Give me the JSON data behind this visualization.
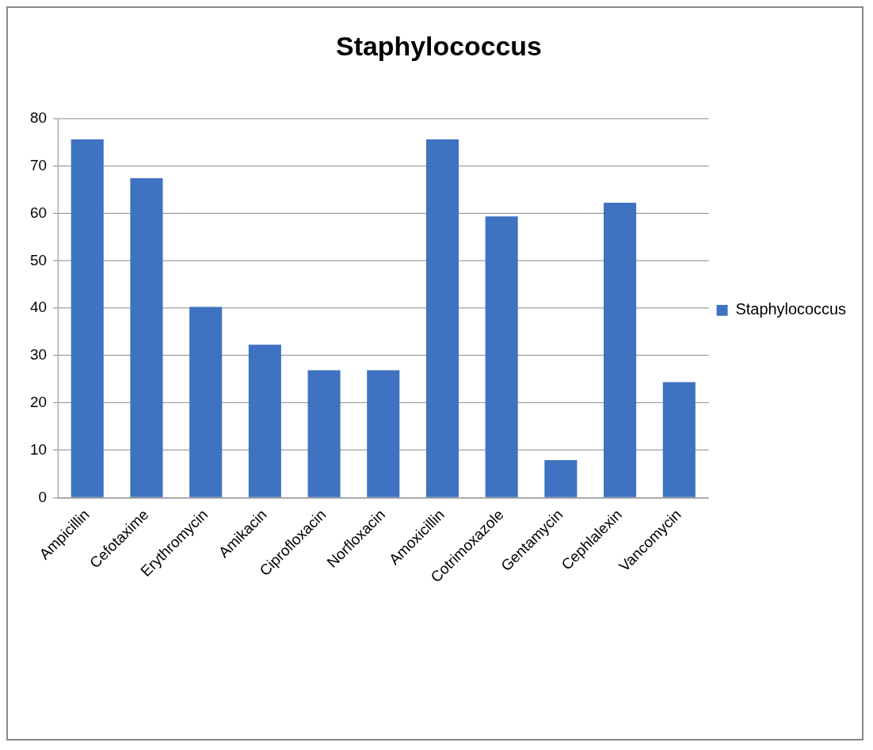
{
  "chart_data": {
    "type": "bar",
    "title": "Staphylococcus",
    "categories": [
      "Ampicillin",
      "Cefotaxime",
      "Erythromycin",
      "Amikacin",
      "Ciprofloxacin",
      "Norfloxacin",
      "Amoxicillin",
      "Cotrimoxazole",
      "Gentamycin",
      "Cephlalexin",
      "Vancomycin"
    ],
    "series": [
      {
        "name": "Staphylococcus",
        "color": "#3f72c0",
        "values": [
          75.7,
          67.5,
          40.3,
          32.3,
          26.9,
          26.9,
          75.7,
          59.4,
          7.9,
          62.3,
          24.4
        ]
      }
    ],
    "ylim": [
      0,
      80
    ],
    "yticks": [
      0,
      10,
      20,
      30,
      40,
      50,
      60,
      70,
      80
    ],
    "grid": "y",
    "legend": "right"
  }
}
